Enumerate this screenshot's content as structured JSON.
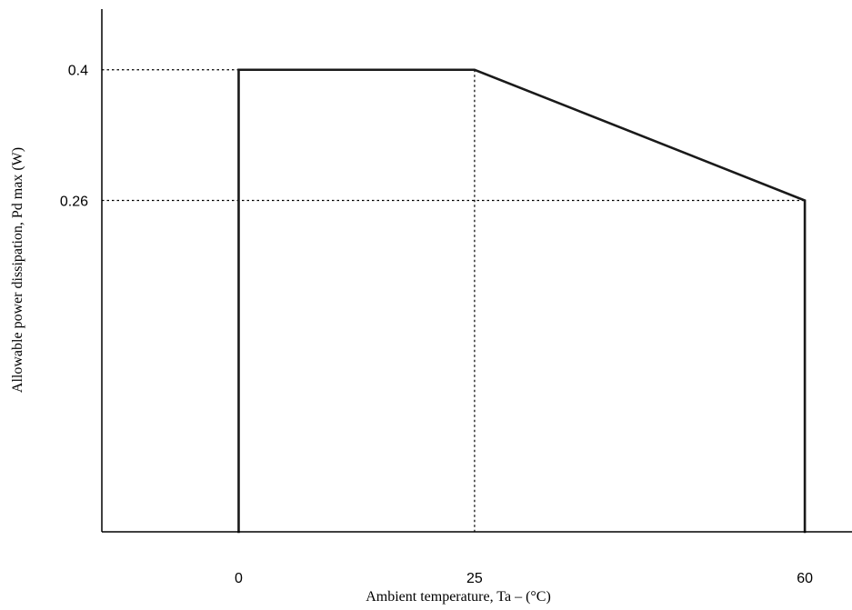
{
  "chart_data": {
    "type": "line",
    "title": "",
    "xlabel": "Ambient temperature, Ta – (°C)",
    "ylabel": "Allowable power dissipation, Pd max (W)",
    "x_ticks": [
      {
        "value": 0,
        "label": "0"
      },
      {
        "value": 25,
        "label": "25"
      },
      {
        "value": 60,
        "label": "60"
      }
    ],
    "y_ticks": [
      {
        "value": 0.4,
        "label": "0.4"
      },
      {
        "value": 0.26,
        "label": "0.26"
      }
    ],
    "xlim": [
      -14.5,
      65
    ],
    "ylim": [
      -0.095,
      0.465
    ],
    "series": [
      {
        "x": [
          0,
          0,
          25,
          60,
          60
        ],
        "y": [
          -0.095,
          0.4,
          0.4,
          0.26,
          -0.095
        ]
      }
    ],
    "reference_lines": [
      {
        "from": [
          -14.5,
          0.4
        ],
        "to": [
          0,
          0.4
        ]
      },
      {
        "from": [
          -14.5,
          0.26
        ],
        "to": [
          60,
          0.26
        ]
      },
      {
        "from": [
          25,
          0.4
        ],
        "to": [
          25,
          -0.095
        ]
      }
    ],
    "grid": false,
    "colors": {
      "line": "#1a1a1a",
      "axis": "#000000"
    }
  }
}
